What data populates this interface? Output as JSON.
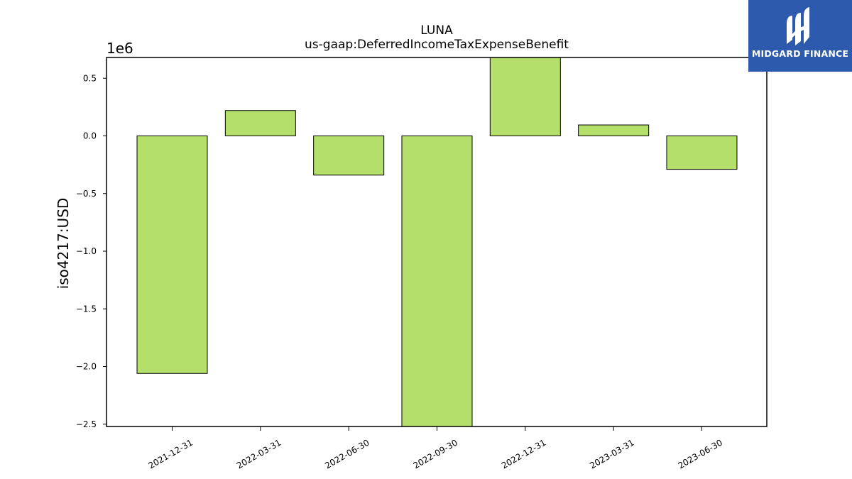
{
  "brand": {
    "name": "MIDGARD FINANCE",
    "color": "#2d5aac"
  },
  "chart_data": {
    "type": "bar",
    "title": "LUNA",
    "subtitle": "us-gaap:DeferredIncomeTaxExpenseBenefit",
    "ylabel": "iso4217:USD",
    "xlabel": "",
    "y_multiplier_label": "1e6",
    "categories": [
      "2021-12-31",
      "2022-03-31",
      "2022-06-30",
      "2022-09-30",
      "2022-12-31",
      "2023-03-31",
      "2023-06-30"
    ],
    "values": [
      -2060000,
      220000,
      -340000,
      -2520000,
      690000,
      95000,
      -290000
    ],
    "ylim": [
      -2520000,
      680000
    ],
    "yticks": [
      -2500000,
      -2000000,
      -1500000,
      -1000000,
      -500000,
      0,
      500000
    ],
    "ytick_labels": [
      "−2.5",
      "−2.0",
      "−1.5",
      "−1.0",
      "−0.5",
      "0.0",
      "0.5"
    ],
    "bar_color": "#b5df6b",
    "bar_edge_color": "#000000",
    "grid": false,
    "legend": "none"
  }
}
